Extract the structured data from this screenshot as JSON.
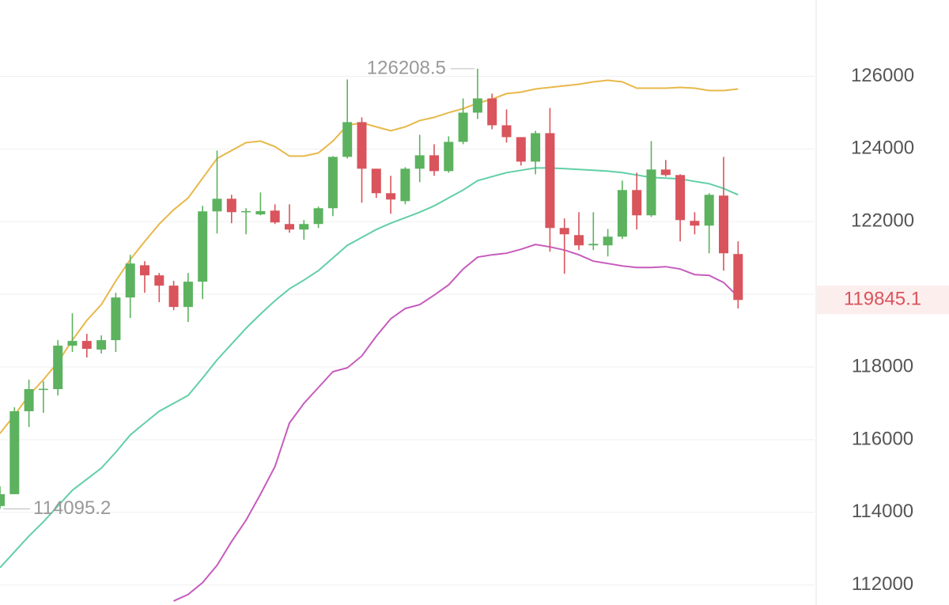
{
  "chart_data": {
    "type": "candlestick",
    "open": [
      114174,
      114500,
      116783,
      117391,
      117391,
      118587,
      118717,
      118480,
      118739,
      119913,
      120800,
      120522,
      120239,
      119652,
      120348,
      122283,
      122630,
      122261,
      122200,
      122304,
      121935,
      121783,
      121935,
      122370,
      123783,
      124739,
      123457,
      122783,
      122565,
      123457,
      123826,
      123391,
      124196,
      125000,
      125391,
      124652,
      124326,
      123652,
      124435,
      121826,
      121630,
      121348,
      121348,
      121587,
      122870,
      122174,
      123435,
      123283,
      122022,
      121891,
      122717,
      121109
    ],
    "high": [
      114717,
      116891,
      117652,
      117609,
      118739,
      119478,
      118913,
      118870,
      120043,
      121087,
      120913,
      120587,
      120370,
      120587,
      122435,
      123957,
      122739,
      122370,
      122804,
      122478,
      122478,
      122043,
      122413,
      123804,
      125913,
      124870,
      123457,
      123261,
      123500,
      124391,
      124130,
      124348,
      125391,
      126208.5,
      125522,
      125087,
      124326,
      124500,
      125130,
      122087,
      122261,
      122261,
      121800,
      123130,
      123348,
      124217,
      123696,
      123304,
      122261,
      122783,
      123783,
      121457
    ],
    "low": [
      114095.2,
      114500,
      116348,
      116739,
      117217,
      118413,
      118261,
      118370,
      118413,
      119348,
      120043,
      119783,
      119565,
      119239,
      119870,
      121674,
      121957,
      121652,
      122174,
      121935,
      121696,
      121500,
      121826,
      122152,
      123739,
      122522,
      122652,
      122217,
      122478,
      123087,
      123261,
      123348,
      124130,
      124826,
      124543,
      124174,
      123543,
      123304,
      121174,
      120565,
      121217,
      121217,
      121043,
      121522,
      121783,
      122130,
      123239,
      121457,
      121652,
      121130,
      120652,
      119609
    ],
    "close": [
      114500,
      116783,
      117391,
      117400,
      118587,
      118717,
      118500,
      118739,
      119913,
      120848,
      120522,
      120239,
      119652,
      120348,
      122283,
      122630,
      122261,
      122290,
      122290,
      121978,
      121783,
      121935,
      122370,
      123783,
      124739,
      123457,
      122783,
      122609,
      123457,
      123826,
      123391,
      124196,
      125000,
      125391,
      124652,
      124326,
      123652,
      124435,
      121826,
      121652,
      121348,
      121390,
      121587,
      122870,
      122174,
      123435,
      123283,
      122043,
      121891,
      122739,
      121130,
      119845.1
    ],
    "up_color": "#5cb25f",
    "down_color": "#d9545c",
    "bands": [
      {
        "color": "#e8b84a",
        "values": [
          116174,
          116674,
          117217,
          117652,
          118130,
          118739,
          119283,
          119717,
          120370,
          120957,
          121457,
          121935,
          122326,
          122652,
          123196,
          123739,
          123957,
          124174,
          124217,
          124065,
          123804,
          123804,
          123891,
          124217,
          124652,
          124717,
          124609,
          124500,
          124609,
          124783,
          124870,
          125000,
          125109,
          125261,
          125370,
          125522,
          125565,
          125652,
          125696,
          125739,
          125783,
          125848,
          125891,
          125848,
          125674,
          125674,
          125674,
          125696,
          125674,
          125609,
          125609,
          125652
        ]
      },
      {
        "color": "#62cfa6",
        "values": [
          112478,
          112913,
          113348,
          113739,
          114174,
          114609,
          114913,
          115217,
          115652,
          116130,
          116457,
          116783,
          117000,
          117217,
          117696,
          118196,
          118630,
          119065,
          119457,
          119826,
          120152,
          120391,
          120652,
          121000,
          121348,
          121565,
          121783,
          121957,
          122109,
          122261,
          122435,
          122652,
          122870,
          123130,
          123239,
          123348,
          123413,
          123478,
          123478,
          123457,
          123435,
          123413,
          123391,
          123348,
          123283,
          123217,
          123196,
          123174,
          123109,
          123043,
          122913,
          122739
        ]
      },
      {
        "color": "#c65cbd",
        "values": [
          null,
          null,
          null,
          null,
          null,
          null,
          null,
          null,
          null,
          null,
          null,
          null,
          111560,
          111739,
          112065,
          112543,
          113196,
          113783,
          114500,
          115261,
          116457,
          117000,
          117435,
          117870,
          117978,
          118304,
          118848,
          119326,
          119609,
          119717,
          119978,
          120261,
          120696,
          121022,
          121087,
          121130,
          121239,
          121370,
          121304,
          121217,
          121087,
          120913,
          120848,
          120783,
          120739,
          120739,
          120761,
          120696,
          120543,
          120522,
          120326,
          119935
        ]
      }
    ],
    "ylim": [
      111450,
      128100
    ],
    "yticks": [
      112000,
      114000,
      116000,
      118000,
      120000,
      122000,
      124000,
      126000
    ],
    "grid": true,
    "annotations": {
      "max_index": 33,
      "min_index": 0,
      "last_index": 51
    }
  }
}
